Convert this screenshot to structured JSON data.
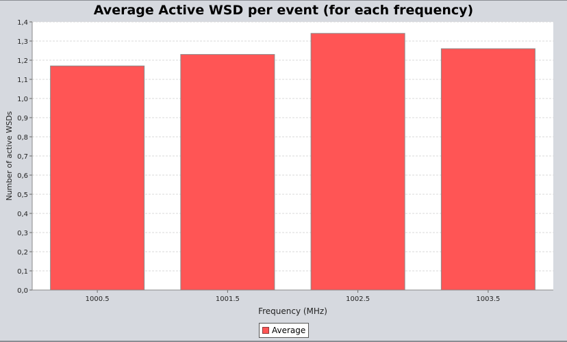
{
  "chart_data": {
    "type": "bar",
    "title": "Average Active WSD per event (for each frequency)",
    "xlabel": "Frequency (MHz)",
    "ylabel": "Number of active WSDs",
    "categories": [
      "1000.5",
      "1001.5",
      "1002.5",
      "1003.5"
    ],
    "series": [
      {
        "name": "Average",
        "values": [
          1.17,
          1.23,
          1.34,
          1.26
        ]
      }
    ],
    "ylim": [
      0,
      1.4
    ],
    "yticks": [
      "0,0",
      "0,1",
      "0,2",
      "0,3",
      "0,4",
      "0,5",
      "0,6",
      "0,7",
      "0,8",
      "0,9",
      "1,0",
      "1,1",
      "1,2",
      "1,3",
      "1,4"
    ],
    "grid": true,
    "legend_position": "bottom-center",
    "colors": {
      "bar": "#ff5555",
      "bar_border": "#8a8a8a",
      "grid": "#d9d9d9",
      "background": "#d6d9df",
      "plot_bg": "#ffffff"
    }
  }
}
